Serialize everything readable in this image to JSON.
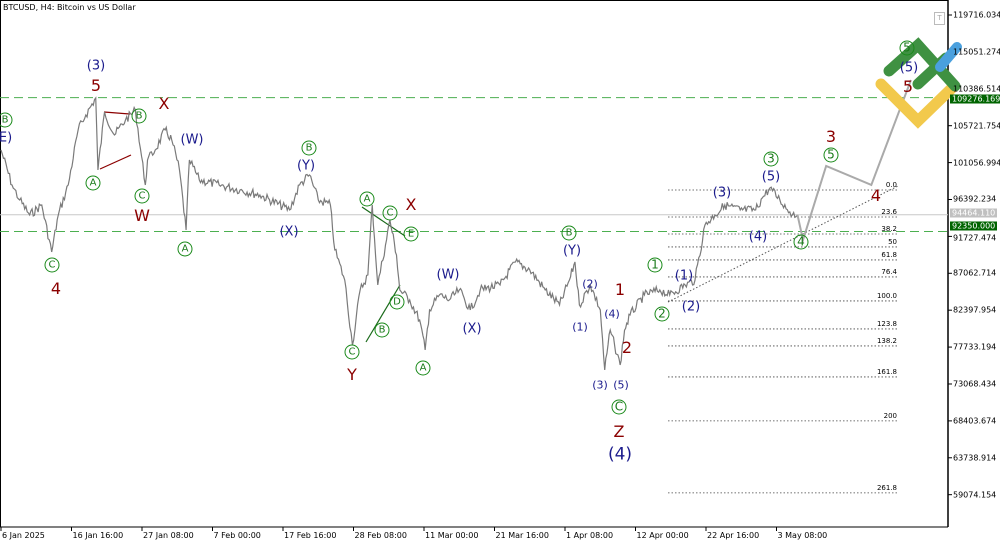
{
  "header": {
    "title": "BTCUSD, H4:  Bitcoin vs US Dollar"
  },
  "colors": {
    "price_line": "#7a7a7a",
    "forecast_line": "#aaaaaa",
    "level_line": "#4caf50",
    "level_tag": "#006400",
    "bid_tag": "#c0c0c0",
    "wave_navy": "#1a1a8c",
    "wave_red": "#8b0000",
    "wave_green": "#1a7a1a"
  },
  "chart_data": {
    "type": "line",
    "symbol": "BTCUSD",
    "timeframe": "H4",
    "x_ticks": [
      "6 Jan 2025",
      "16 Jan 16:00",
      "27 Jan 08:00",
      "7 Feb 00:00",
      "17 Feb 16:00",
      "28 Feb 08:00",
      "11 Mar 00:00",
      "21 Mar 16:00",
      "1 Apr 08:00",
      "12 Apr 00:00",
      "22 Apr 16:00",
      "3 May 08:00"
    ],
    "y_ticks": [
      "119716.034",
      "115051.274",
      "110386.514",
      "105721.754",
      "101056.994",
      "96392.234",
      "91727.474",
      "87062.714",
      "82397.954",
      "77733.194",
      "73068.434",
      "68403.674",
      "63738.914",
      "59074.154"
    ],
    "ylim": [
      56000,
      121600
    ],
    "price_tags": {
      "resistance": "109276.169",
      "current": "94464.110",
      "support": "92350.000"
    },
    "levels": {
      "resistance": 109276.169,
      "current": 94464.11,
      "support": 92350.0
    },
    "series": [
      [
        "2025-01-06 00:00",
        102652
      ],
      [
        "2025-01-07 16:00",
        98228
      ],
      [
        "2025-01-08 20:00",
        96332
      ],
      [
        "2025-01-10 08:00",
        94436
      ],
      [
        "2025-01-12 04:00",
        95700
      ],
      [
        "2025-01-13 16:00",
        89759
      ],
      [
        "2025-01-14 16:00",
        94436
      ],
      [
        "2025-01-16 04:00",
        98228
      ],
      [
        "2025-01-17 16:00",
        105180
      ],
      [
        "2025-01-18 20:00",
        107076
      ],
      [
        "2025-01-20 08:00",
        109225
      ],
      [
        "2025-01-20 16:00",
        100124
      ],
      [
        "2025-01-21 16:00",
        107455
      ],
      [
        "2025-01-23 04:00",
        104548
      ],
      [
        "2025-01-24 20:00",
        106444
      ],
      [
        "2025-01-26 08:00",
        107708
      ],
      [
        "2025-01-27 20:00",
        98228
      ],
      [
        "2025-01-28 04:00",
        101388
      ],
      [
        "2025-01-29 08:00",
        102652
      ],
      [
        "2025-01-30 20:00",
        105180
      ],
      [
        "2025-01-31 20:00",
        103916
      ],
      [
        "2025-02-02 00:00",
        100124
      ],
      [
        "2025-02-03 00:00",
        92540
      ],
      [
        "2025-02-03 12:00",
        101388
      ],
      [
        "2025-02-05 00:00",
        98860
      ],
      [
        "2025-02-08 00:00",
        98228
      ],
      [
        "2025-02-11 04:00",
        97596
      ],
      [
        "2025-02-14 04:00",
        96964
      ],
      [
        "2025-02-18 16:00",
        95068
      ],
      [
        "2025-02-20 04:00",
        98228
      ],
      [
        "2025-02-21 16:00",
        99492
      ],
      [
        "2025-02-23 00:00",
        96332
      ],
      [
        "2025-02-24 20:00",
        95700
      ],
      [
        "2025-02-25 12:00",
        90012
      ],
      [
        "2025-02-27 00:00",
        86220
      ],
      [
        "2025-02-28 04:00",
        78004
      ],
      [
        "2025-03-01 08:00",
        84956
      ],
      [
        "2025-03-02 12:00",
        86852
      ],
      [
        "2025-03-03 04:00",
        95700
      ],
      [
        "2025-03-04 00:00",
        85588
      ],
      [
        "2025-03-05 04:00",
        90644
      ],
      [
        "2025-03-05 20:00",
        93804
      ],
      [
        "2025-03-06 20:00",
        89380
      ],
      [
        "2025-03-07 08:00",
        84956
      ],
      [
        "2025-03-08 20:00",
        83692
      ],
      [
        "2025-03-10 08:00",
        81164
      ],
      [
        "2025-03-11 04:00",
        77372
      ],
      [
        "2025-03-11 20:00",
        82428
      ],
      [
        "2025-03-13 08:00",
        84324
      ],
      [
        "2025-03-14 20:00",
        83692
      ],
      [
        "2025-03-16 08:00",
        84956
      ],
      [
        "2025-03-18 00:00",
        82428
      ],
      [
        "2025-03-19 12:00",
        84956
      ],
      [
        "2025-03-22 12:00",
        85588
      ],
      [
        "2025-03-24 20:00",
        88496
      ],
      [
        "2025-03-27 00:00",
        87484
      ],
      [
        "2025-03-29 08:00",
        84956
      ],
      [
        "2025-03-31 12:00",
        83060
      ],
      [
        "2025-04-02 00:00",
        86220
      ],
      [
        "2025-04-02 20:00",
        88496
      ],
      [
        "2025-04-03 12:00",
        83060
      ],
      [
        "2025-04-05 04:00",
        85588
      ],
      [
        "2025-04-06 16:00",
        82428
      ],
      [
        "2025-04-07 08:00",
        74844
      ],
      [
        "2025-04-08 04:00",
        79876
      ],
      [
        "2025-04-08 20:00",
        77940
      ],
      [
        "2025-04-09 16:00",
        75476
      ],
      [
        "2025-04-10 08:00",
        79876
      ],
      [
        "2025-04-11 04:00",
        81796
      ],
      [
        "2025-04-13 08:00",
        84324
      ],
      [
        "2025-04-15 16:00",
        84956
      ],
      [
        "2025-04-17 04:00",
        84324
      ],
      [
        "2025-04-19 12:00",
        85588
      ],
      [
        "2025-04-21 00:00",
        86220
      ],
      [
        "2025-04-22 12:00",
        93172
      ],
      [
        "2025-04-24 00:00",
        94436
      ],
      [
        "2025-04-25 12:00",
        95700
      ],
      [
        "2025-04-27 20:00",
        95068
      ],
      [
        "2025-04-30 04:00",
        95068
      ],
      [
        "2025-05-01 04:00",
        96585
      ],
      [
        "2025-05-02 08:00",
        97849
      ],
      [
        "2025-05-03 20:00",
        96332
      ],
      [
        "2025-05-05 08:00",
        94816
      ],
      [
        "2025-05-06 12:00",
        94436
      ]
    ],
    "forecast": [
      [
        "2025-05-06 12:00",
        94436
      ],
      [
        "2025-05-07 08:00",
        91276
      ],
      [
        "2025-05-10 20:00",
        100630
      ],
      [
        "2025-05-17 16:00",
        98228
      ],
      [
        "2025-05-23 16:00",
        111500
      ]
    ],
    "fibonacci": {
      "levels": [
        "0.0",
        "23.6",
        "38.2",
        "50",
        "61.8",
        "76.4",
        "100.0",
        "123.8",
        "138.2",
        "161.8",
        "200",
        "261.8"
      ],
      "prices": [
        97596,
        94183,
        92033,
        90391,
        88749,
        86600,
        83566,
        80026,
        77878,
        73961,
        68402,
        59303
      ]
    },
    "wave_labels": [
      "B",
      "(E)",
      "(3)",
      "5",
      "X",
      "B",
      "A",
      "C",
      "W",
      "(W)",
      "A",
      "C",
      "4",
      "B",
      "(Y)",
      "(X)",
      "A",
      "C",
      "X",
      "E",
      "D",
      "B",
      "C",
      "Y",
      "(W)",
      "(X)",
      "A",
      "B",
      "(Y)",
      "(2)",
      "(1)",
      "1",
      "(4)",
      "2",
      "(3)",
      "(5)",
      "C",
      "Z",
      "(4)",
      "1",
      "2",
      "(1)",
      "(2)",
      "(3)",
      "(4)",
      "3",
      "(5)",
      "4",
      "5",
      "3",
      "4",
      "5",
      "(5)",
      "5"
    ],
    "grid": false
  }
}
